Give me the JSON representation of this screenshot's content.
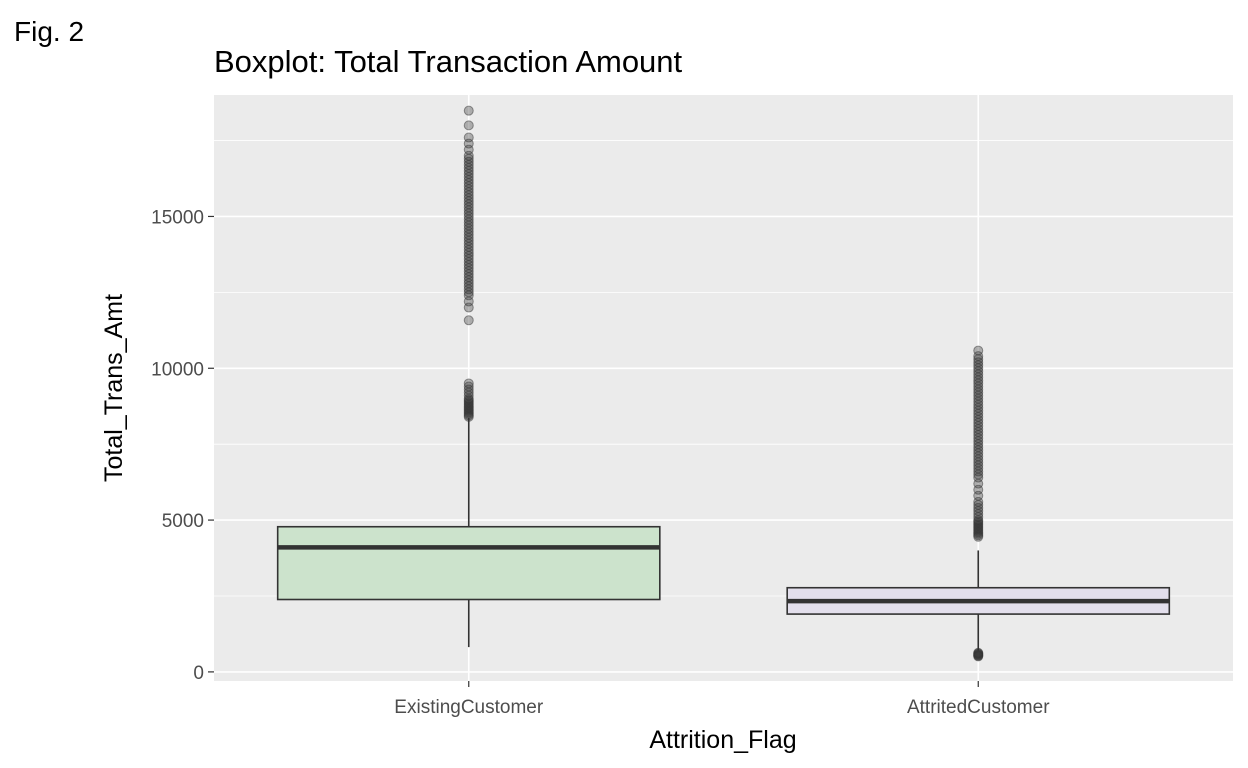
{
  "figure_label": "Fig. 2",
  "colors": {
    "panel_background": "#EBEBEB",
    "grid": "#FFFFFF",
    "box_outline": "#333333",
    "outlier": "#333333",
    "tick_text": "#4D4D4D"
  },
  "chart_data": {
    "type": "boxplot",
    "title": "Boxplot: Total Transaction Amount",
    "xlabel": "Attrition_Flag",
    "ylabel": "Total_Trans_Amt",
    "ylim": [
      -300,
      19000
    ],
    "yticks": [
      0,
      5000,
      10000,
      15000
    ],
    "ytick_labels": [
      "0",
      "5000",
      "10000",
      "15000"
    ],
    "grid": true,
    "categories": [
      "ExistingCustomer",
      "AttritedCustomer"
    ],
    "boxes": [
      {
        "category": "ExistingCustomer",
        "fill": "#CCE3CC",
        "whisker_low": 816,
        "q1": 2384,
        "median": 4100,
        "q3": 4781,
        "whisker_high": 8370,
        "outliers": [
          8400,
          8450,
          8500,
          8550,
          8600,
          8650,
          8700,
          8750,
          8800,
          8850,
          8900,
          8950,
          9000,
          9100,
          9200,
          9300,
          9400,
          9500,
          11580,
          12000,
          12200,
          12400,
          12500,
          12600,
          12700,
          12800,
          12900,
          13000,
          13100,
          13200,
          13300,
          13400,
          13500,
          13600,
          13700,
          13800,
          13900,
          14000,
          14100,
          14200,
          14300,
          14400,
          14500,
          14600,
          14700,
          14800,
          14900,
          15000,
          15100,
          15200,
          15300,
          15400,
          15500,
          15600,
          15700,
          15800,
          15900,
          16000,
          16100,
          16200,
          16300,
          16400,
          16500,
          16600,
          16700,
          16800,
          16900,
          17000,
          17200,
          17400,
          17600,
          18000,
          18484
        ]
      },
      {
        "category": "AttritedCustomer",
        "fill": "#E3DFEC",
        "whisker_low": 700,
        "q1": 1904,
        "median": 2330,
        "q3": 2772,
        "whisker_high": 4000,
        "outliers": [
          510,
          530,
          550,
          570,
          590,
          610,
          630,
          4450,
          4500,
          4550,
          4600,
          4650,
          4700,
          4750,
          4800,
          4850,
          4900,
          4950,
          5000,
          5100,
          5200,
          5300,
          5400,
          5500,
          5600,
          5800,
          6000,
          6200,
          6400,
          6500,
          6600,
          6700,
          6800,
          6900,
          7000,
          7100,
          7200,
          7300,
          7400,
          7500,
          7600,
          7700,
          7800,
          7900,
          8000,
          8100,
          8200,
          8300,
          8400,
          8500,
          8600,
          8700,
          8800,
          8900,
          9000,
          9100,
          9200,
          9300,
          9400,
          9500,
          9600,
          9700,
          9800,
          9900,
          10000,
          10100,
          10200,
          10300,
          10400,
          10583
        ]
      }
    ]
  }
}
